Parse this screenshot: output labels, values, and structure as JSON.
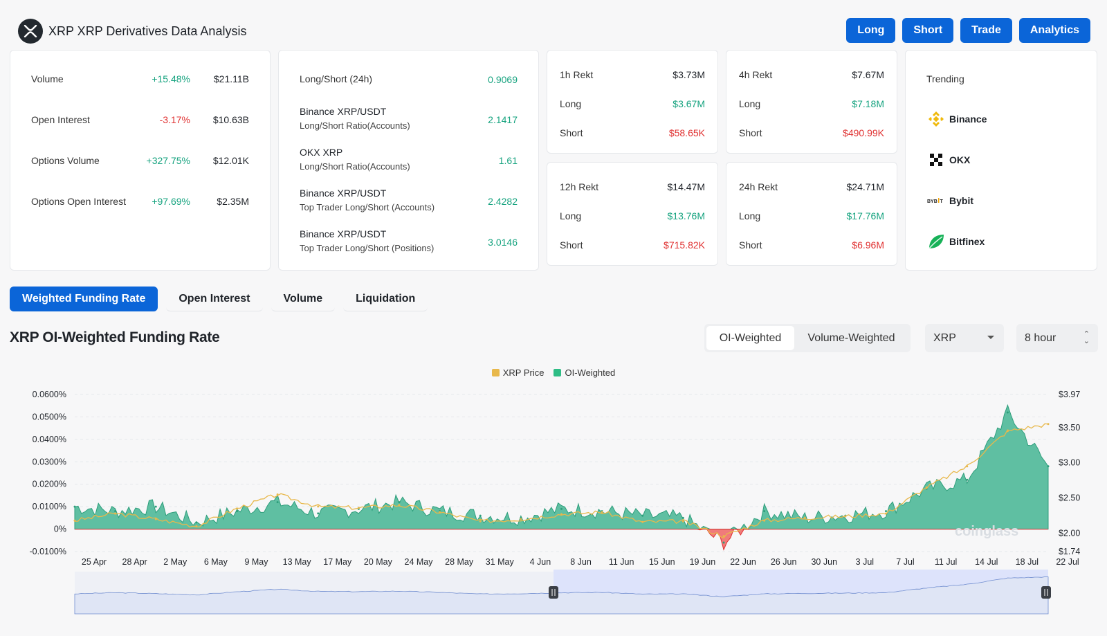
{
  "header": {
    "title": "XRP XRP Derivatives Data Analysis",
    "logo_icon": "xrp-logo-icon"
  },
  "top_buttons": [
    {
      "label": "Long"
    },
    {
      "label": "Short"
    },
    {
      "label": "Trade"
    },
    {
      "label": "Analytics"
    }
  ],
  "stats": [
    {
      "label": "Volume",
      "change": "+15.48%",
      "value": "$21.11B",
      "trend": "up"
    },
    {
      "label": "Open Interest",
      "change": "-3.17%",
      "value": "$10.63B",
      "trend": "down"
    },
    {
      "label": "Options Volume",
      "change": "+327.75%",
      "value": "$12.01K",
      "trend": "up"
    },
    {
      "label": "Options Open Interest",
      "change": "+97.69%",
      "value": "$2.35M",
      "trend": "up"
    }
  ],
  "ratios": [
    {
      "line1": "Long/Short (24h)",
      "line2": "",
      "value": "0.9069"
    },
    {
      "line1": "Binance XRP/USDT",
      "line2": "Long/Short Ratio(Accounts)",
      "value": "2.1417"
    },
    {
      "line1": "OKX XRP",
      "line2": "Long/Short Ratio(Accounts)",
      "value": "1.61"
    },
    {
      "line1": "Binance XRP/USDT",
      "line2": "Top Trader Long/Short (Accounts)",
      "value": "2.4282"
    },
    {
      "line1": "Binance XRP/USDT",
      "line2": "Top Trader Long/Short (Positions)",
      "value": "3.0146"
    }
  ],
  "rekt": [
    {
      "title": "1h Rekt",
      "total": "$3.73M",
      "long_label": "Long",
      "long": "$3.67M",
      "short_label": "Short",
      "short": "$58.65K"
    },
    {
      "title": "4h Rekt",
      "total": "$7.67M",
      "long_label": "Long",
      "long": "$7.18M",
      "short_label": "Short",
      "short": "$490.99K"
    },
    {
      "title": "12h Rekt",
      "total": "$14.47M",
      "long_label": "Long",
      "long": "$13.76M",
      "short_label": "Short",
      "short": "$715.82K"
    },
    {
      "title": "24h Rekt",
      "total": "$24.71M",
      "long_label": "Long",
      "long": "$17.76M",
      "short_label": "Short",
      "short": "$6.96M"
    }
  ],
  "trending": {
    "title": "Trending",
    "items": [
      {
        "name": "Binance",
        "icon": "binance-icon"
      },
      {
        "name": "OKX",
        "icon": "okx-icon"
      },
      {
        "name": "Bybit",
        "icon": "bybit-icon"
      },
      {
        "name": "Bitfinex",
        "icon": "bitfinex-icon"
      }
    ]
  },
  "tabs": [
    {
      "label": "Weighted Funding Rate",
      "active": true
    },
    {
      "label": "Open Interest",
      "active": false
    },
    {
      "label": "Volume",
      "active": false
    },
    {
      "label": "Liquidation",
      "active": false
    }
  ],
  "chart_panel": {
    "title": "XRP OI-Weighted Funding Rate",
    "segment": [
      "OI-Weighted",
      "Volume-Weighted"
    ],
    "coin_select": "XRP",
    "interval_select": "8 hour",
    "watermark": "coinglass"
  },
  "colors": {
    "accent": "#0b65d8",
    "positive": "#16a37f",
    "negative": "#e03131",
    "funding_fill": "#5fbfa2",
    "price_line": "#e8b84b"
  },
  "chart_data": {
    "type": "area",
    "legend": [
      {
        "name": "XRP Price",
        "color": "#e8b84b"
      },
      {
        "name": "OI-Weighted",
        "color": "#2ebd85"
      }
    ],
    "legend_position": "top-center",
    "x_ticks": [
      "25 Apr",
      "28 Apr",
      "2 May",
      "6 May",
      "9 May",
      "13 May",
      "17 May",
      "20 May",
      "24 May",
      "28 May",
      "31 May",
      "4 Jun",
      "8 Jun",
      "11 Jun",
      "15 Jun",
      "19 Jun",
      "22 Jun",
      "26 Jun",
      "30 Jun",
      "3 Jul",
      "7 Jul",
      "11 Jul",
      "14 Jul",
      "18 Jul",
      "22 Jul"
    ],
    "y_left_ticks": [
      "0.0600%",
      "0.0500%",
      "0.0400%",
      "0.0300%",
      "0.0200%",
      "0.0100%",
      "0%",
      "-0.0100%"
    ],
    "y_left_range": [
      -0.0001,
      0.0006
    ],
    "y_right_ticks": [
      "$3.97",
      "$3.50",
      "$3.00",
      "$2.50",
      "$2.00",
      "$1.74"
    ],
    "y_right_range": [
      1.74,
      3.97
    ],
    "grid": true,
    "series": [
      {
        "name": "XRP Price",
        "type": "line",
        "points": [
          [
            "25 Apr",
            2.18
          ],
          [
            "28 Apr",
            2.28
          ],
          [
            "2 May",
            2.2
          ],
          [
            "6 May",
            2.1
          ],
          [
            "9 May",
            2.35
          ],
          [
            "13 May",
            2.55
          ],
          [
            "17 May",
            2.38
          ],
          [
            "20 May",
            2.36
          ],
          [
            "24 May",
            2.4
          ],
          [
            "28 May",
            2.3
          ],
          [
            "31 May",
            2.17
          ],
          [
            "4 Jun",
            2.2
          ],
          [
            "8 Jun",
            2.27
          ],
          [
            "11 Jun",
            2.3
          ],
          [
            "15 Jun",
            2.16
          ],
          [
            "19 Jun",
            2.17
          ],
          [
            "22 Jun",
            1.96
          ],
          [
            "26 Jun",
            2.18
          ],
          [
            "30 Jun",
            2.22
          ],
          [
            "3 Jul",
            2.24
          ],
          [
            "7 Jul",
            2.28
          ],
          [
            "11 Jul",
            2.65
          ],
          [
            "14 Jul",
            2.95
          ],
          [
            "18 Jul",
            3.45
          ],
          [
            "22 Jul",
            3.55
          ]
        ]
      },
      {
        "name": "OI-Weighted",
        "type": "area",
        "points": [
          [
            "25 Apr",
            0.0001
          ],
          [
            "28 Apr",
            8e-05
          ],
          [
            "2 May",
            0.0001
          ],
          [
            "6 May",
            3e-05
          ],
          [
            "9 May",
            8e-05
          ],
          [
            "13 May",
            0.00012
          ],
          [
            "17 May",
            7e-05
          ],
          [
            "20 May",
            9e-05
          ],
          [
            "24 May",
            0.00012
          ],
          [
            "28 May",
            8e-05
          ],
          [
            "31 May",
            6e-05
          ],
          [
            "4 Jun",
            5e-05
          ],
          [
            "8 Jun",
            9e-05
          ],
          [
            "11 Jun",
            8e-05
          ],
          [
            "15 Jun",
            6e-05
          ],
          [
            "19 Jun",
            5e-05
          ],
          [
            "22 Jun",
            -6e-05
          ],
          [
            "26 Jun",
            8e-05
          ],
          [
            "30 Jun",
            5e-05
          ],
          [
            "3 Jul",
            6e-05
          ],
          [
            "7 Jul",
            8e-05
          ],
          [
            "11 Jul",
            0.00018
          ],
          [
            "14 Jul",
            0.00022
          ],
          [
            "18 Jul",
            0.00052
          ],
          [
            "22 Jul",
            0.00028
          ]
        ]
      }
    ]
  }
}
